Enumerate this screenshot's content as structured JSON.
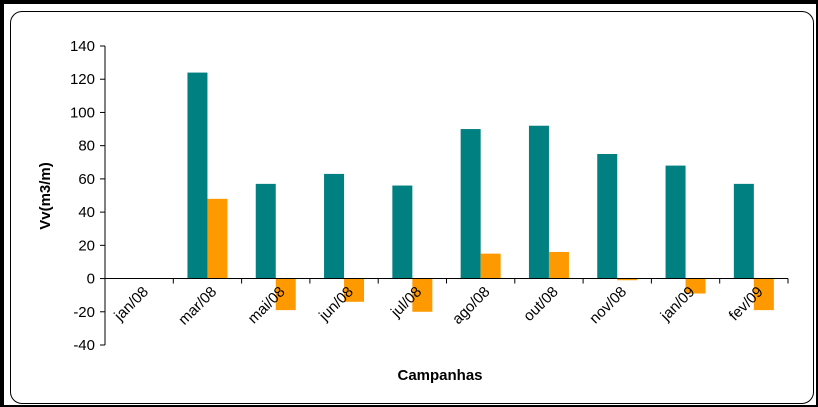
{
  "chart_data": {
    "type": "bar",
    "xlabel": "Campanhas",
    "ylabel": "Vv(m3/m)",
    "ylim": [
      -40,
      140
    ],
    "yticks": [
      -40,
      -20,
      0,
      20,
      40,
      60,
      80,
      100,
      120,
      140
    ],
    "grid": false,
    "categories": [
      "jan/08",
      "mar/08",
      "mai/08",
      "jun/08",
      "jul/08",
      "ago/08",
      "out/08",
      "nov/08",
      "jan/09",
      "fev/09"
    ],
    "series": [
      {
        "color": "#008080",
        "values": [
          0,
          124,
          57,
          63,
          56,
          90,
          92,
          75,
          68,
          57
        ]
      },
      {
        "color": "#FF9900",
        "values": [
          0,
          48,
          -19,
          -14,
          -20,
          15,
          16,
          -1,
          -9,
          -19
        ]
      }
    ]
  }
}
